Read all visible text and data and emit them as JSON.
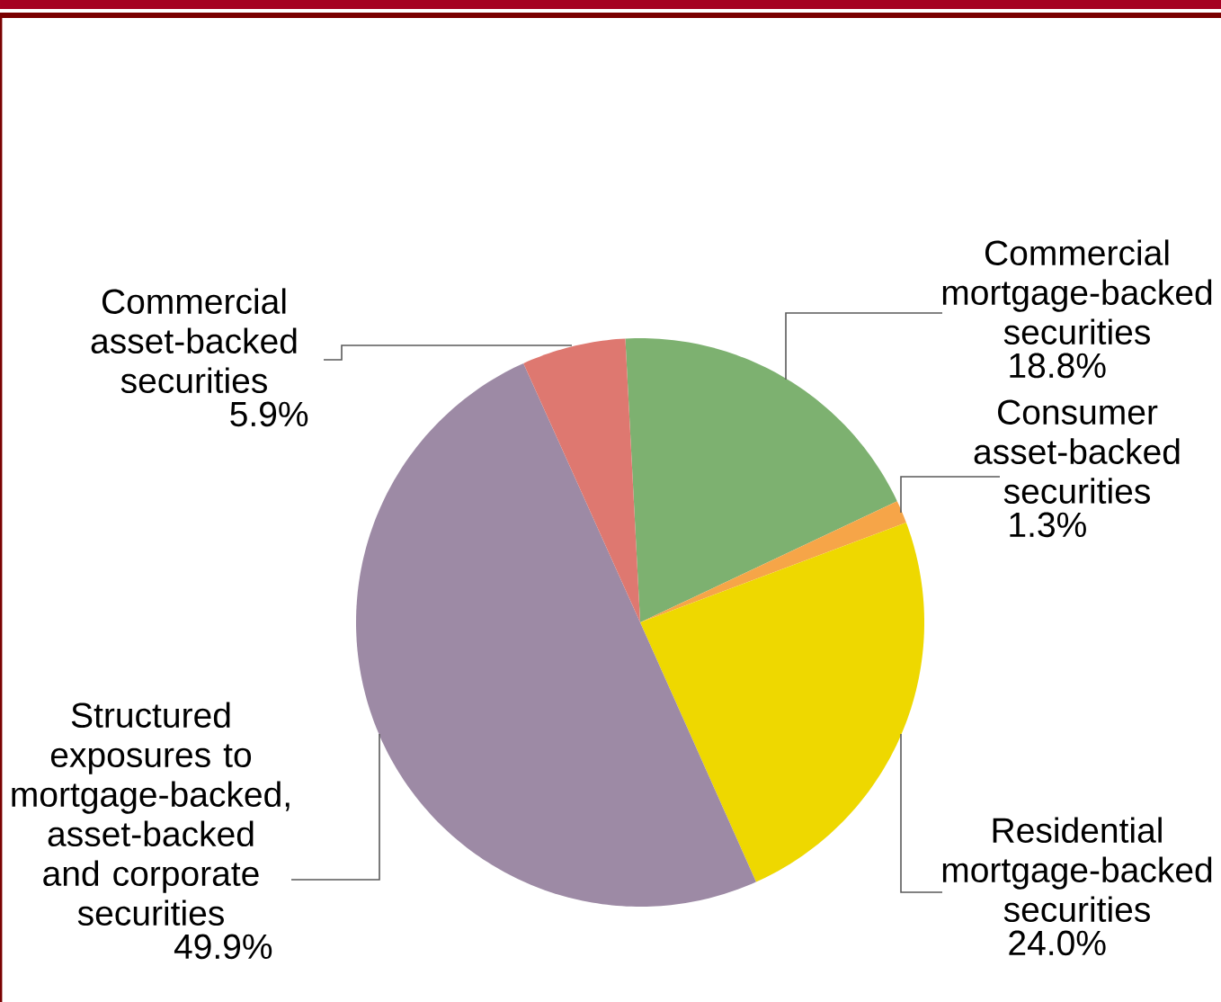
{
  "chart_data": {
    "type": "pie",
    "categories": [
      "Commercial mortgage-backed securities",
      "Consumer asset-backed securities",
      "Residential mortgage-backed securities",
      "Structured exposures to mortgage-backed, asset-backed and corporate securities",
      "Commercial asset-backed securities"
    ],
    "values": [
      18.8,
      1.3,
      24.0,
      49.9,
      5.9
    ],
    "value_labels": [
      "18.8%",
      "1.3%",
      "24.0%",
      "49.9%",
      "5.9%"
    ],
    "colors": [
      "#7db170",
      "#f6a548",
      "#eed800",
      "#9d8aa5",
      "#de7870"
    ]
  }
}
